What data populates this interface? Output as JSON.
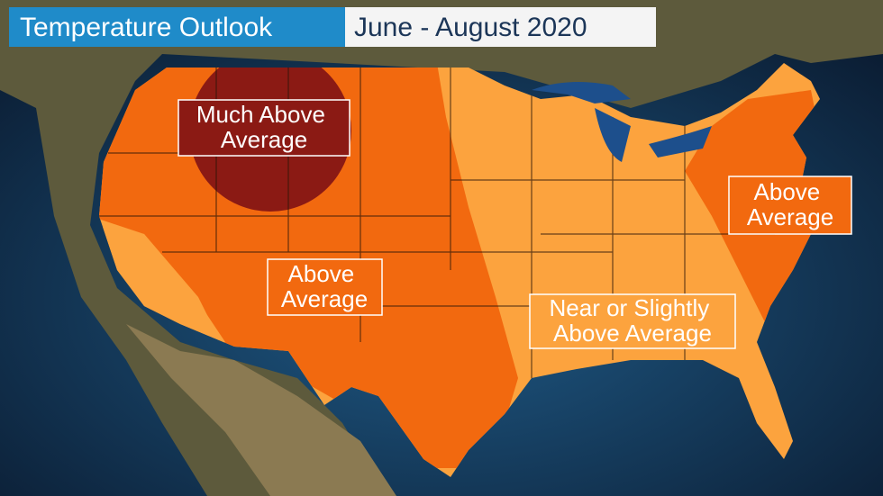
{
  "header": {
    "title": "Temperature Outlook",
    "period": "June - August 2020"
  },
  "labels": [
    {
      "lines": [
        "Much Above",
        "Average"
      ]
    },
    {
      "lines": [
        "Above",
        "Average"
      ]
    },
    {
      "lines": [
        "Near or Slightly",
        "Above Average"
      ]
    },
    {
      "lines": [
        "Above",
        "Average"
      ]
    }
  ]
}
